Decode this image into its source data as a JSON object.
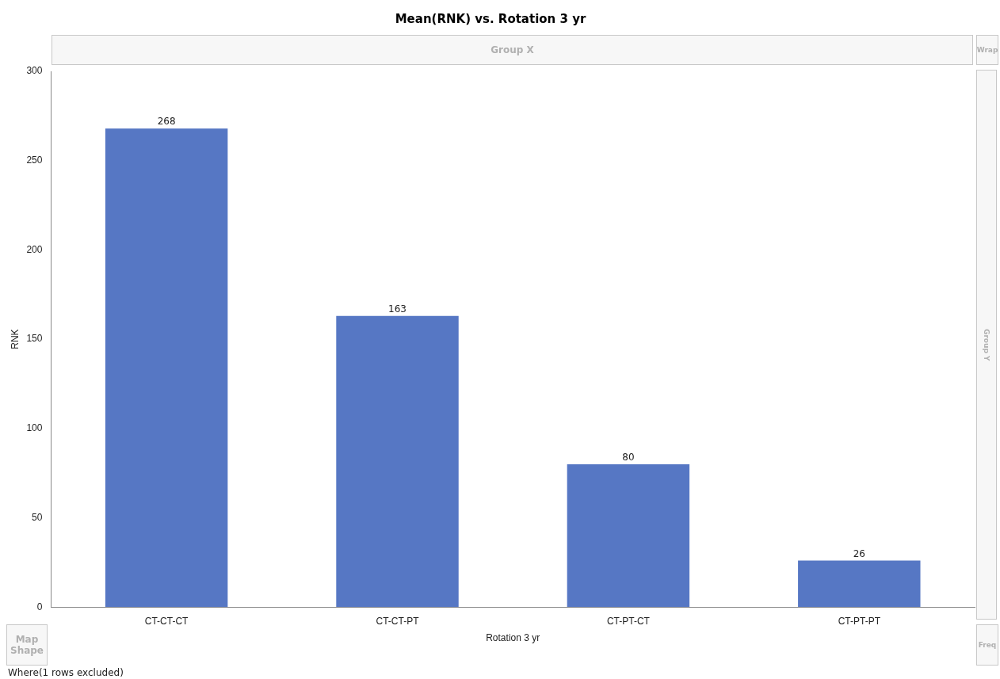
{
  "chart_data": {
    "type": "bar",
    "title": "Mean(RNK) vs. Rotation 3 yr",
    "xlabel": "Rotation 3 yr",
    "ylabel": "RNK",
    "categories": [
      "CT-CT-CT",
      "CT-CT-PT",
      "CT-PT-CT",
      "CT-PT-PT"
    ],
    "values": [
      268,
      163,
      80,
      26
    ],
    "color": "#5677c4",
    "ylim": [
      0,
      300
    ],
    "yticks": [
      0,
      50,
      100,
      150,
      200,
      250,
      300
    ],
    "grid": false,
    "legend": false,
    "data_labels": true,
    "annotations": [
      "Group X",
      "Group Y",
      "Wrap",
      "Map Shape",
      "Freq",
      "Where(1 rows excluded)"
    ]
  }
}
